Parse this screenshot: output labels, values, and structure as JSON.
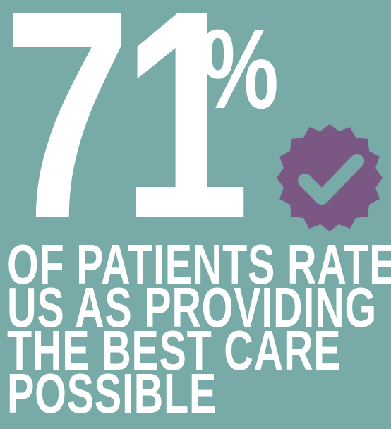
{
  "stat": {
    "number": "71",
    "percent": "%"
  },
  "badge": {
    "icon": "check-badge-icon",
    "color": "#7b5883",
    "check_color": "#78aba7"
  },
  "caption": {
    "lines": [
      "OF PATIENTS RATE",
      "US AS PROVIDING",
      "THE BEST CARE",
      "POSSIBLE"
    ]
  },
  "colors": {
    "background": "#78aba7",
    "text": "#ffffff",
    "accent": "#7b5883"
  }
}
